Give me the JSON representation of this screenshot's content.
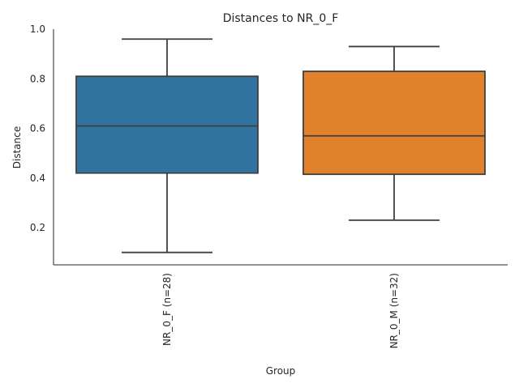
{
  "chart_data": {
    "type": "box",
    "title": "Distances to NR_0_F",
    "xlabel": "Group",
    "ylabel": "Distance",
    "ylim": [
      0.05,
      1.0
    ],
    "yticks": [
      0.2,
      0.4,
      0.6,
      0.8,
      1.0
    ],
    "ytick_labels": [
      "0.2",
      "0.4",
      "0.6",
      "0.8",
      "1.0"
    ],
    "grid": false,
    "categories": [
      "NR_0_F (n=28)",
      "NR_0_M (n=32)"
    ],
    "boxes": [
      {
        "label": "NR_0_F (n=28)",
        "color": "#3274a1",
        "whislo": 0.1,
        "q1": 0.42,
        "median": 0.61,
        "q3": 0.81,
        "whishi": 0.96
      },
      {
        "label": "NR_0_M (n=32)",
        "color": "#e1812c",
        "whislo": 0.23,
        "q1": 0.415,
        "median": 0.57,
        "q3": 0.83,
        "whishi": 0.93
      }
    ]
  }
}
